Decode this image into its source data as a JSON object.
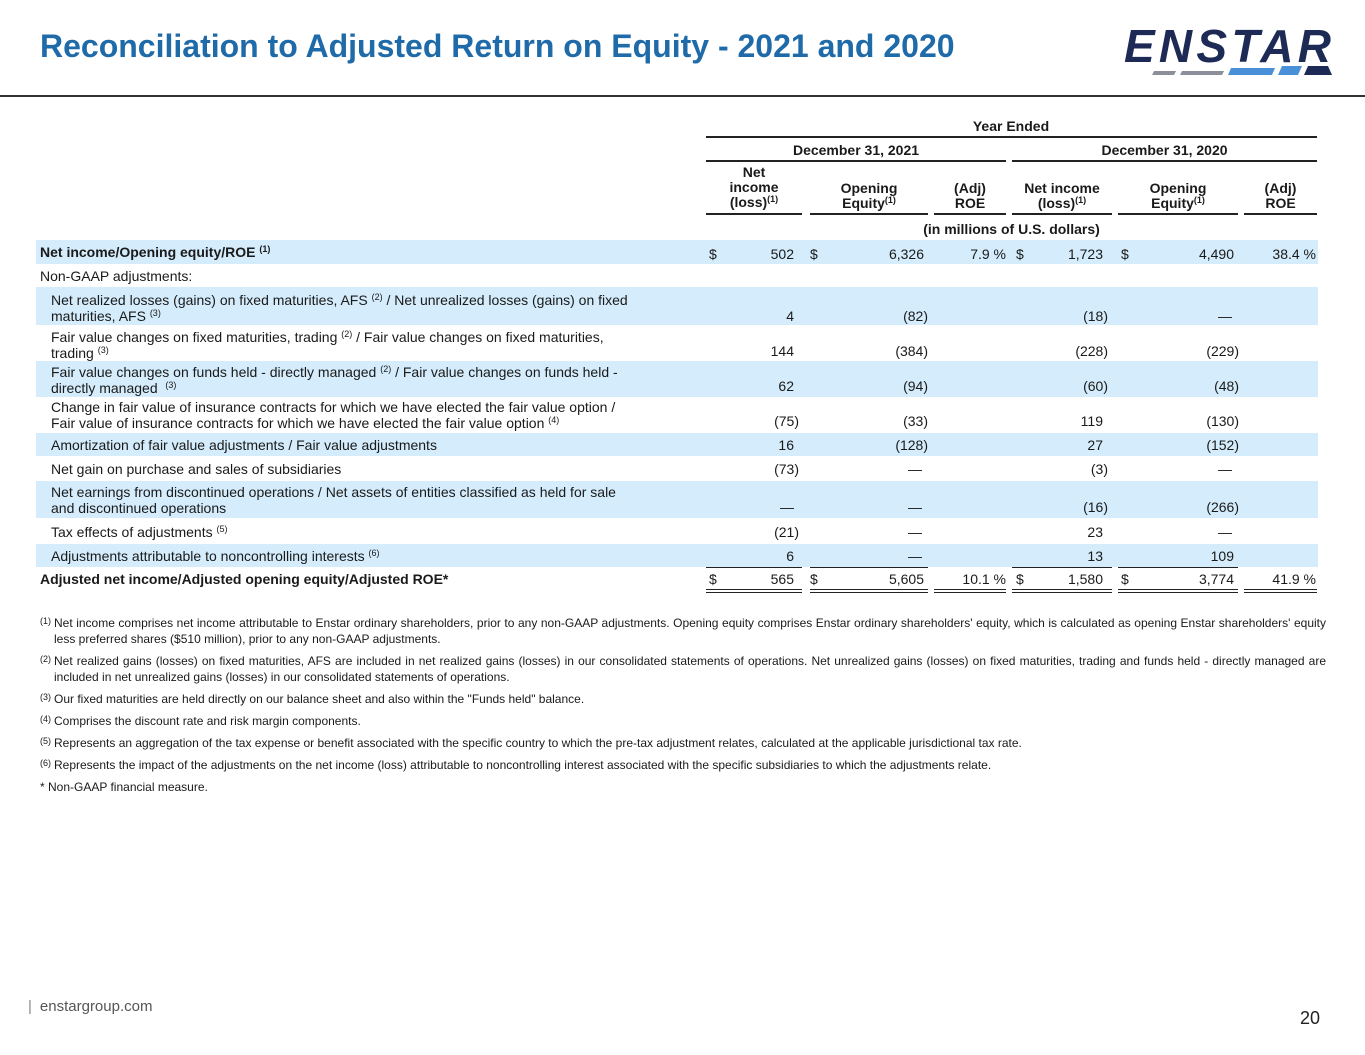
{
  "title": "Reconciliation to Adjusted Return on Equity - 2021 and 2020",
  "logo_text": "ENSTAR",
  "header": {
    "year_ended": "Year Ended",
    "period1": "December 31, 2021",
    "period2": "December 31, 2020",
    "col1": [
      "Net",
      "income",
      "(loss)"
    ],
    "col2": [
      "Opening",
      "Equity"
    ],
    "col3": [
      "(Adj)",
      "ROE"
    ],
    "col4": [
      "Net income",
      "(loss)"
    ],
    "col5": [
      "Opening",
      "Equity"
    ],
    "col6": [
      "(Adj)",
      "ROE"
    ],
    "units": "(in millions of U.S. dollars)"
  },
  "rows": [
    {
      "label": "Net income/Opening equity/ROE",
      "sup": "(1)",
      "d1": "$",
      "v1": "502",
      "d2": "$",
      "v2": "6,326",
      "v3": "7.9 %",
      "d4": "$",
      "v4": "1,723",
      "d5": "$",
      "v5": "4,490",
      "v6": "38.4 %"
    },
    {
      "label": "Non-GAAP adjustments:"
    },
    {
      "label1": "Net realized losses (gains) on fixed maturities, AFS",
      "s1": "(2)",
      "label1b": " / Net unrealized losses (gains) on fixed",
      "label2": "maturities, AFS",
      "s2": "(3)",
      "v1": "4",
      "v2": "(82)",
      "v4": "(18)",
      "v5": "—"
    },
    {
      "label1": "Fair value changes on fixed maturities, trading",
      "s1": "(2)",
      "label1b": " / Fair value changes on fixed maturities,",
      "label2": "trading",
      "s2": "(3)",
      "v1": "144",
      "v2": "(384)",
      "v4": "(228)",
      "v5": "(229)"
    },
    {
      "label1": "Fair value changes  on funds held - directly managed",
      "s1": "(2)",
      "label1b": " / Fair value changes on funds held -",
      "label2": "directly managed",
      "s2": "(3)",
      "v1": "62",
      "v2": "(94)",
      "v4": "(60)",
      "v5": "(48)"
    },
    {
      "label1": "Change in fair value of insurance contracts for which we have elected the fair value option /",
      "label2": "Fair value of insurance contracts for which we have elected the fair value option",
      "s2": "(4)",
      "v1": "(75)",
      "v2": "(33)",
      "v4": "119",
      "v5": "(130)"
    },
    {
      "label": "Amortization of fair value adjustments / Fair value adjustments",
      "v1": "16",
      "v2": "(128)",
      "v4": "27",
      "v5": "(152)"
    },
    {
      "label": "Net gain on purchase and sales of subsidiaries",
      "v1": "(73)",
      "v2": "—",
      "v4": "(3)",
      "v5": "—"
    },
    {
      "label1": "Net earnings from discontinued operations / Net assets of entities classified as held for sale",
      "label2": "and discontinued operations",
      "v1": "—",
      "v2": "—",
      "v4": "(16)",
      "v5": "(266)"
    },
    {
      "label": "Tax effects of adjustments",
      "sup": "(5)",
      "v1": "(21)",
      "v2": "—",
      "v4": "23",
      "v5": "—"
    },
    {
      "label": "Adjustments attributable to noncontrolling interests",
      "sup": "(6)",
      "v1": "6",
      "v2": "—",
      "v4": "13",
      "v5": "109"
    },
    {
      "label": "Adjusted net income/Adjusted opening equity/Adjusted ROE*",
      "d1": "$",
      "v1": "565",
      "d2": "$",
      "v2": "5,605",
      "v3": "10.1 %",
      "d4": "$",
      "v4": "1,580",
      "d5": "$",
      "v5": "3,774",
      "v6": "41.9 %"
    }
  ],
  "footnote_marks": [
    "(1)",
    "(2)",
    "(3)",
    "(4)",
    "(5)",
    "(6)"
  ],
  "notes": [
    {
      "mark": "(1)",
      "text": "Net income comprises net income attributable to Enstar ordinary shareholders, prior to any non-GAAP adjustments. Opening equity comprises Enstar ordinary shareholders' equity, which is calculated as opening Enstar shareholders' equity less preferred shares ($510 million), prior to any non-GAAP adjustments."
    },
    {
      "mark": "(2)",
      "text": "Net realized gains (losses) on fixed maturities, AFS are included in net realized gains (losses) in our consolidated statements of operations. Net unrealized gains (losses) on fixed maturities, trading and funds held - directly managed are included in net unrealized gains (losses) in our consolidated statements of operations."
    },
    {
      "mark": "(3)",
      "text": "Our fixed maturities are held directly on our balance sheet and also within the \"Funds held\" balance."
    },
    {
      "mark": "(4)",
      "text": "Comprises the discount rate and risk margin components."
    },
    {
      "mark": "(5)",
      "text": "Represents an aggregation of the tax expense or benefit associated with the specific country to which the pre-tax adjustment relates, calculated at the applicable jurisdictional tax rate."
    },
    {
      "mark": "(6)",
      "text": "Represents the impact of the adjustments on the net income (loss) attributable to noncontrolling interest associated with the specific subsidiaries to which the adjustments relate."
    },
    {
      "mark": "",
      "text": "* Non-GAAP financial measure."
    }
  ],
  "footer": {
    "divider": "|",
    "site": "enstargroup.com",
    "page": "20"
  },
  "colors": {
    "title": "#1f6aa8",
    "band": "#d4ecfb",
    "logo_navy": "#1c2a55",
    "logo_blue": "#4a90d9"
  }
}
